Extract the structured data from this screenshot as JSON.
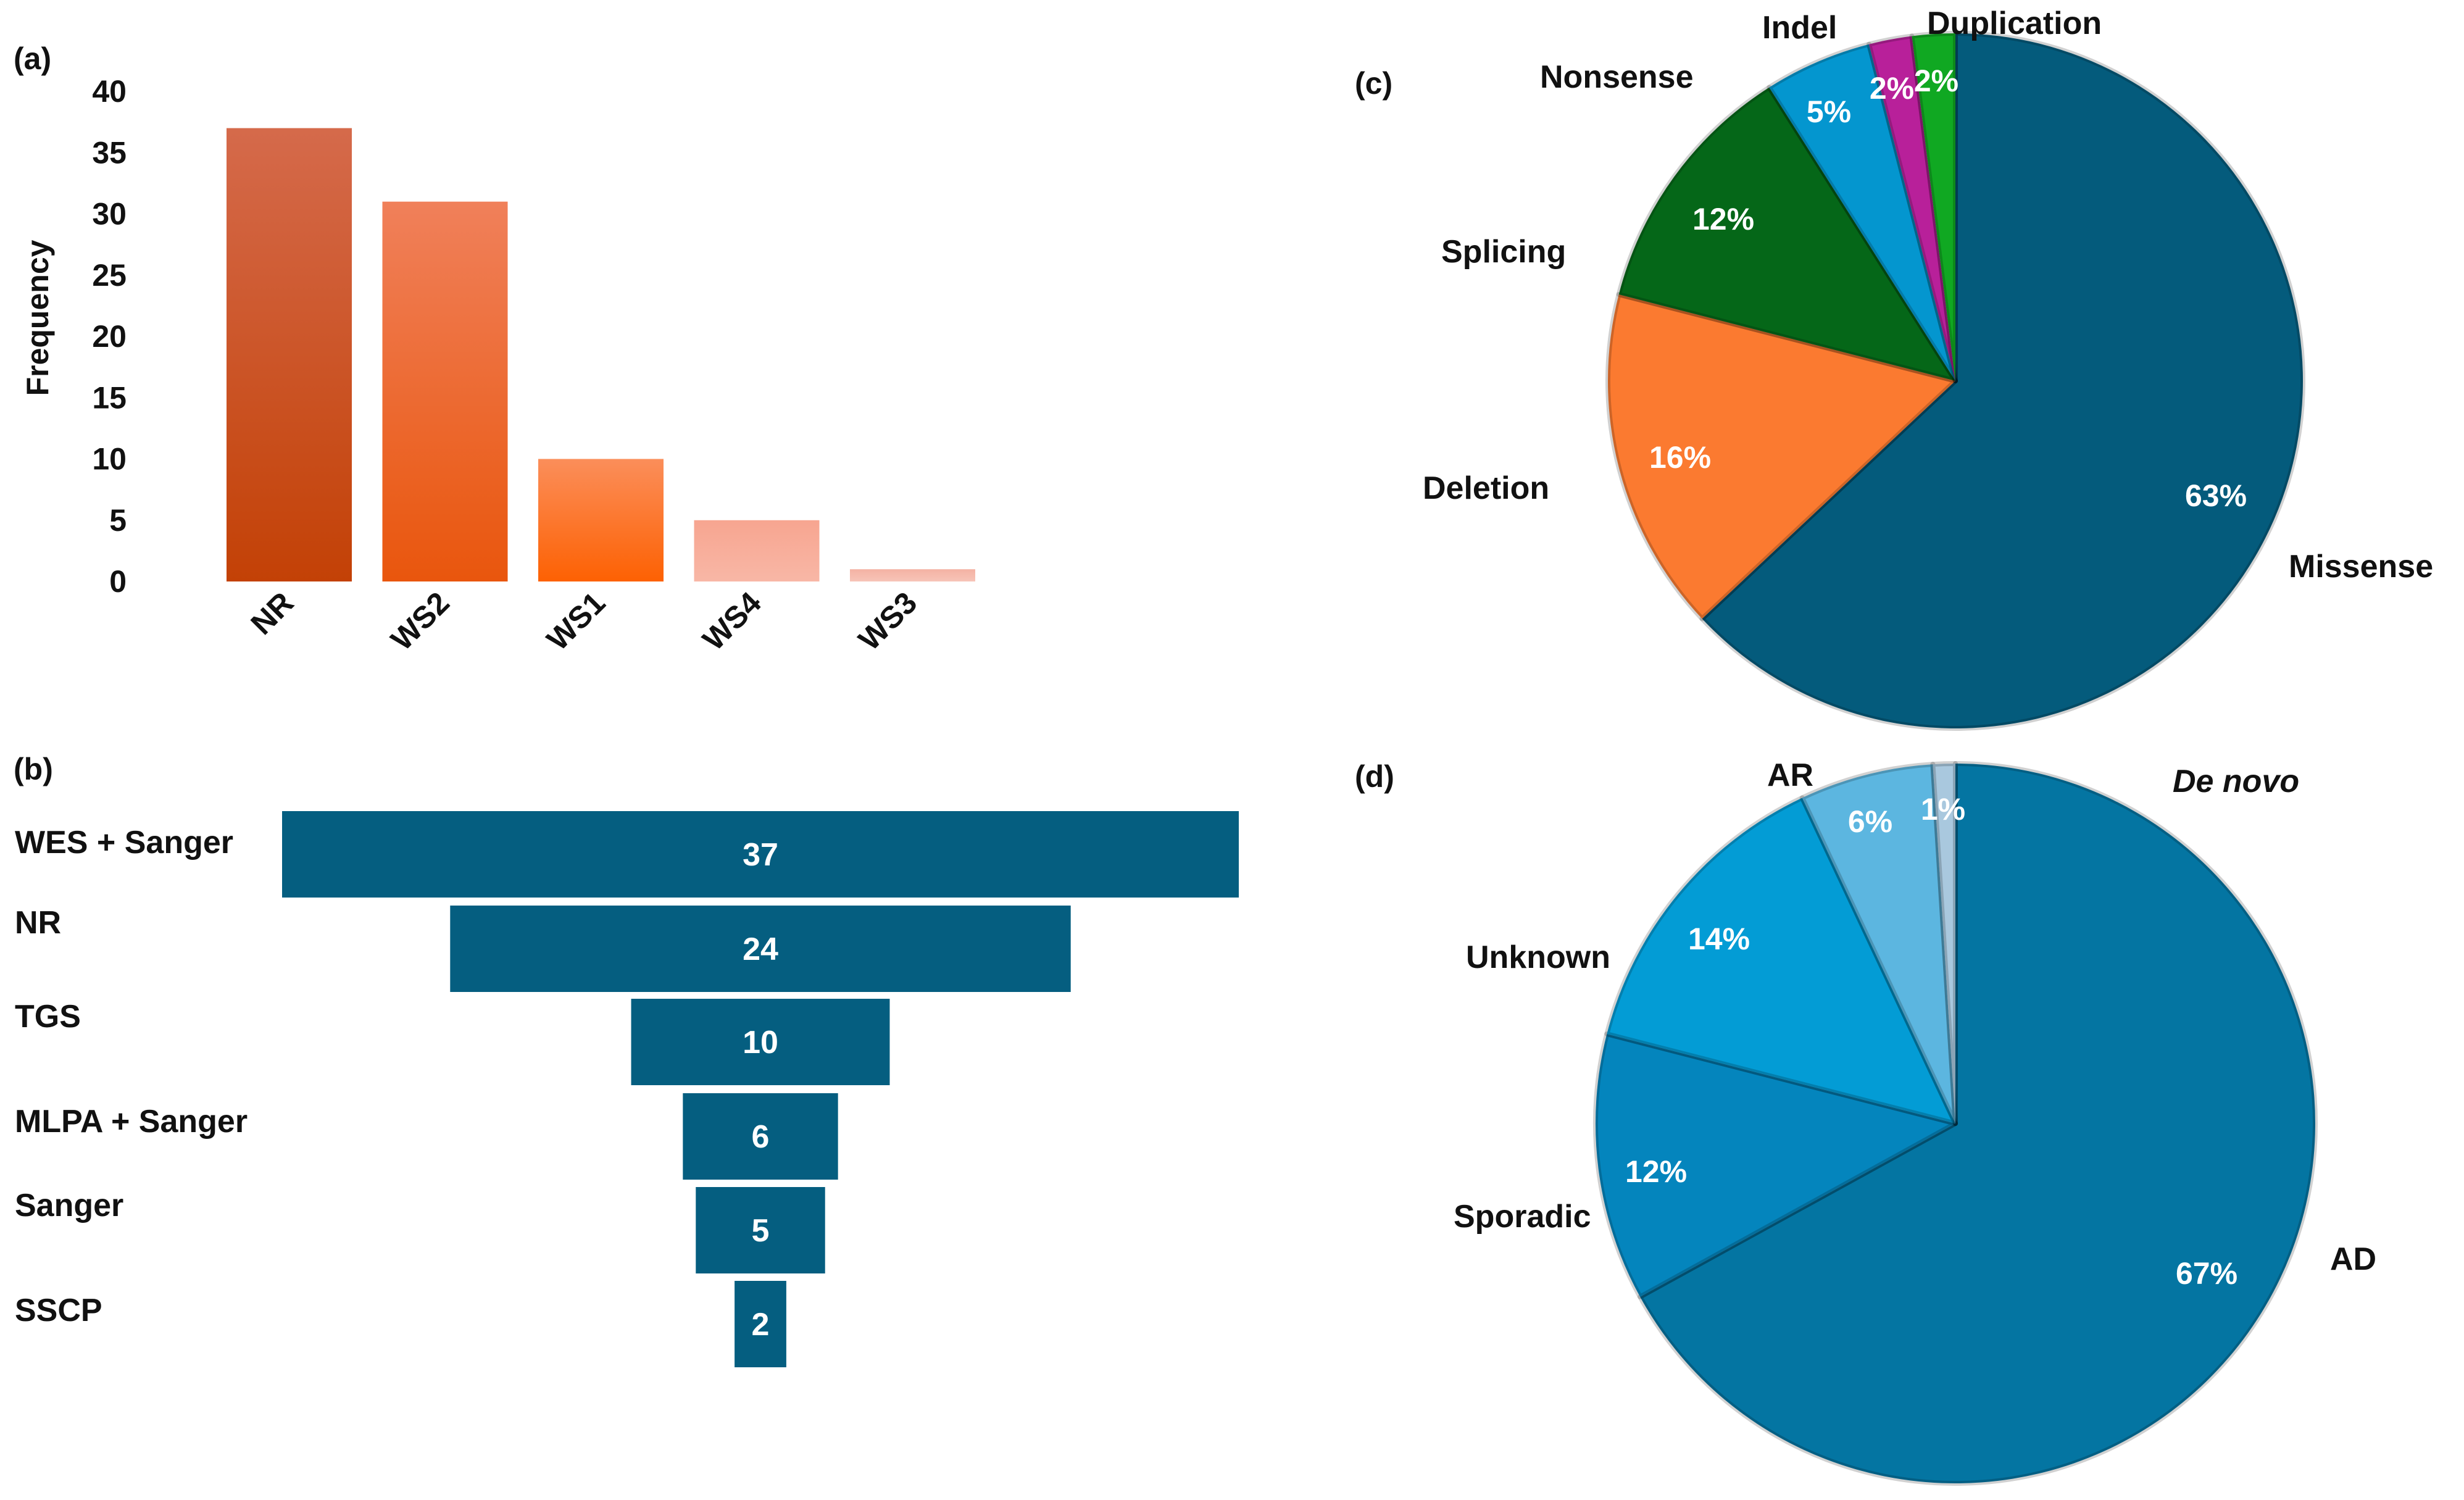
{
  "chart_data": [
    {
      "panel": "(a)",
      "type": "bar",
      "title": "",
      "xlabel": "",
      "ylabel": "Frequency",
      "categories": [
        "NR",
        "WS2",
        "WS1",
        "WS4",
        "WS3"
      ],
      "values": [
        37,
        31,
        10,
        5,
        1
      ],
      "ylim": [
        0,
        40
      ],
      "yticks": [
        "0",
        "5",
        "10",
        "15",
        "20",
        "25",
        "30",
        "35",
        "40"
      ],
      "colors": [
        "#c9440a",
        "#ec5f1d",
        "#fd6a10",
        "#f7aa95",
        "#f6bcb0"
      ],
      "grid": false
    },
    {
      "panel": "(b)",
      "type": "bar",
      "orientation": "horizontal-funnel",
      "categories": [
        "WES + Sanger",
        "NR",
        "TGS",
        "MLPA + Sanger",
        "Sanger",
        "SSCP"
      ],
      "values": [
        37,
        24,
        10,
        6,
        5,
        2
      ],
      "labels": [
        "37",
        "24",
        "10",
        "6",
        "5",
        "2"
      ],
      "color": "#055e80"
    },
    {
      "panel": "(c)",
      "type": "pie",
      "categories": [
        "Missense",
        "Deletion",
        "Splicing",
        "Nonsense",
        "Indel",
        "Duplication"
      ],
      "values": [
        63,
        16,
        12,
        5,
        2,
        2
      ],
      "labels": [
        "63%",
        "16%",
        "12%",
        "5%",
        "2%",
        "2%"
      ],
      "colors": [
        "#045b7c",
        "#fb7a30",
        "#056718",
        "#0496cf",
        "#b8209a",
        "#10a822"
      ],
      "start": "12 o'clock",
      "direction": "clockwise"
    },
    {
      "panel": "(d)",
      "type": "pie",
      "categories": [
        "AD",
        "Sporadic",
        "Unknown",
        "AR",
        "De novo"
      ],
      "values": [
        67,
        12,
        14,
        6,
        1
      ],
      "labels": [
        "67%",
        "12%",
        "14%",
        "6%",
        "1%"
      ],
      "colors": [
        "#0475a2",
        "#0485bd",
        "#039cd5",
        "#5cb6e0",
        "#a9c8de"
      ],
      "start": "12 o'clock",
      "direction": "clockwise"
    }
  ]
}
